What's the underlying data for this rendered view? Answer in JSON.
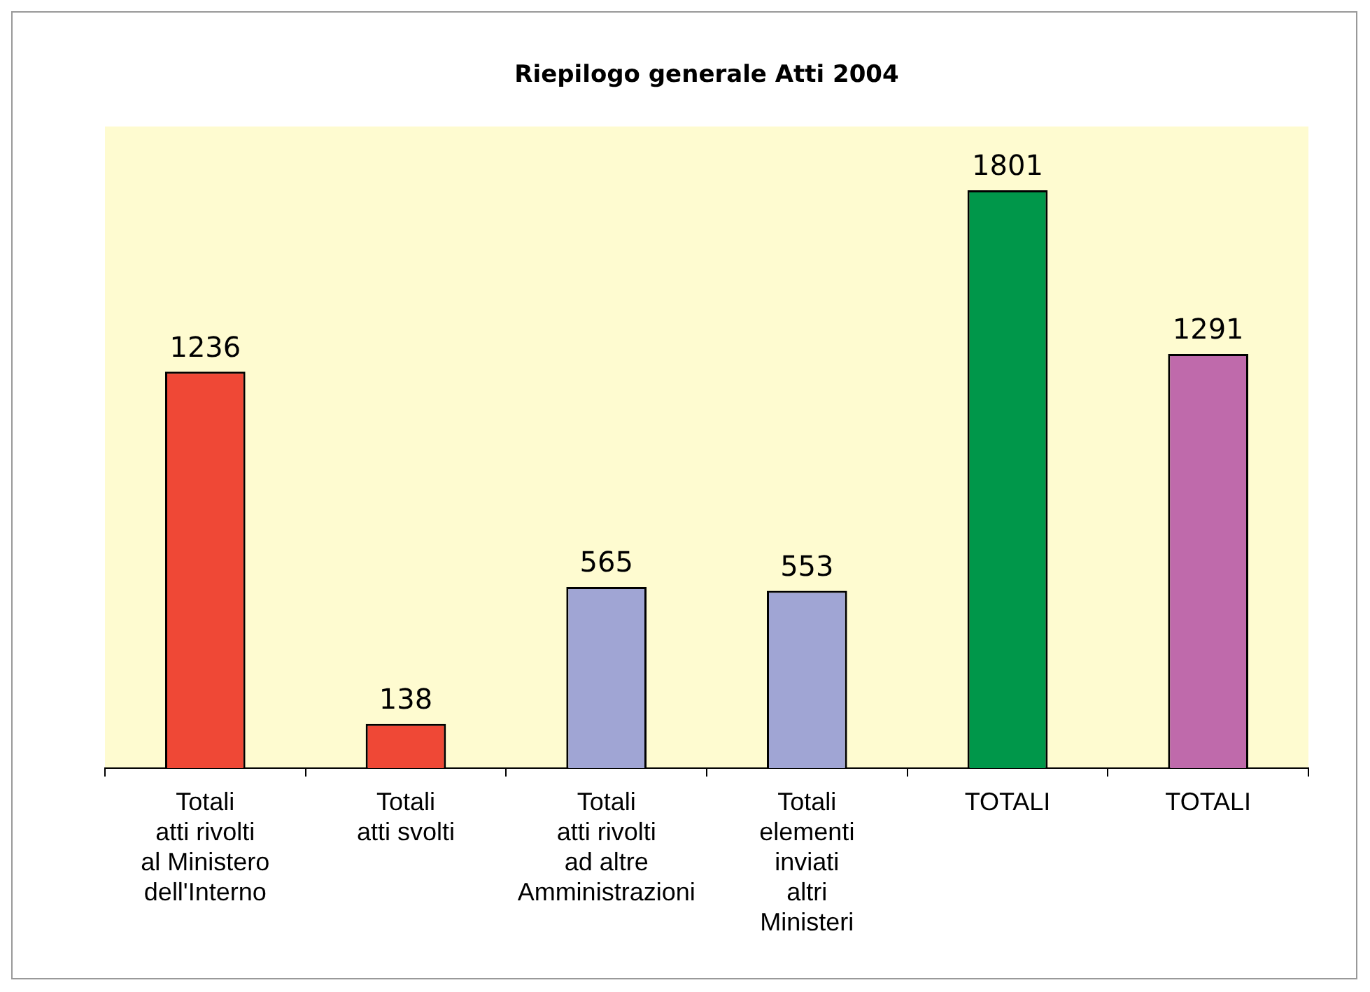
{
  "chart_data": {
    "type": "bar",
    "title": "Riepilogo generale Atti 2004",
    "categories": [
      "Totali\natti rivolti\nal Ministero\ndell'Interno",
      "Totali\natti svolti",
      "Totali\natti rivolti\nad altre\nAmministrazioni",
      "Totali\nelementi\ninviati\naltri\nMinisteri",
      "TOTALI",
      "TOTALI"
    ],
    "values": [
      1236,
      138,
      565,
      553,
      1801,
      1291
    ],
    "colors": [
      "#ef4836",
      "#ef4836",
      "#a0a5d4",
      "#a0a5d4",
      "#00974a",
      "#bf6aab"
    ],
    "data_labels": true
  }
}
